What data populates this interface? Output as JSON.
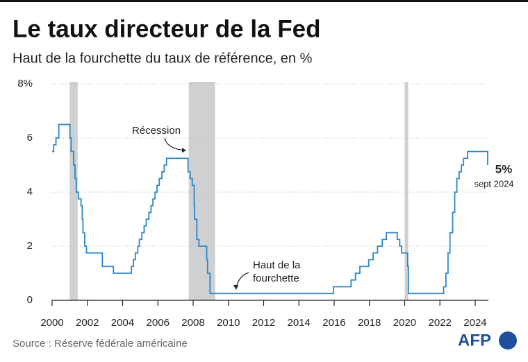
{
  "chart_data": {
    "type": "line",
    "step": "after",
    "title": "Le taux directeur de la Fed",
    "subtitle": "Haut de la fourchette du taux de référence, en %",
    "source": "Source : Réserve fédérale américaine",
    "logo": "AFP",
    "x": [
      2000.0,
      2000.09,
      2000.22,
      2000.38,
      2001.01,
      2001.08,
      2001.22,
      2001.3,
      2001.37,
      2001.49,
      2001.64,
      2001.71,
      2001.75,
      2001.85,
      2001.95,
      2002.85,
      2003.48,
      2004.5,
      2004.61,
      2004.72,
      2004.86,
      2004.95,
      2005.09,
      2005.22,
      2005.34,
      2005.49,
      2005.61,
      2005.72,
      2005.84,
      2005.95,
      2006.08,
      2006.23,
      2006.36,
      2006.49,
      2007.71,
      2007.83,
      2007.95,
      2008.06,
      2008.08,
      2008.21,
      2008.33,
      2008.77,
      2008.82,
      2008.96,
      2015.96,
      2016.96,
      2017.21,
      2017.46,
      2017.96,
      2018.21,
      2018.46,
      2018.73,
      2018.96,
      2019.58,
      2019.72,
      2019.83,
      2020.17,
      2020.21,
      2022.21,
      2022.34,
      2022.46,
      2022.57,
      2022.72,
      2022.84,
      2022.96,
      2023.09,
      2023.22,
      2023.34,
      2023.57,
      2024.71
    ],
    "series": [
      {
        "color": "#2a86c8",
        "values": [
          5.5,
          5.75,
          6.0,
          6.5,
          6.0,
          5.5,
          5.0,
          4.5,
          4.0,
          3.75,
          3.5,
          3.0,
          2.5,
          2.0,
          1.75,
          1.25,
          1.0,
          1.25,
          1.5,
          1.75,
          2.0,
          2.25,
          2.5,
          2.75,
          3.0,
          3.25,
          3.5,
          3.75,
          4.0,
          4.25,
          4.5,
          4.75,
          5.0,
          5.25,
          4.75,
          4.5,
          4.25,
          3.5,
          3.0,
          2.25,
          2.0,
          1.5,
          1.0,
          0.25,
          0.5,
          0.75,
          1.0,
          1.25,
          1.5,
          1.75,
          2.0,
          2.25,
          2.5,
          2.25,
          2.0,
          1.75,
          1.25,
          0.25,
          0.5,
          1.0,
          1.75,
          2.5,
          3.25,
          4.0,
          4.5,
          4.75,
          5.0,
          5.25,
          5.5,
          5.0
        ]
      }
    ],
    "recessions": [
      [
        2001.0,
        2001.45
      ],
      [
        2007.75,
        2009.25
      ],
      [
        2020.0,
        2020.2
      ]
    ],
    "recession_color": "#cfd0d2",
    "xlim": [
      2000,
      2024.75
    ],
    "xticks": [
      2000,
      2002,
      2004,
      2006,
      2008,
      2010,
      2012,
      2014,
      2016,
      2018,
      2020,
      2022,
      2024
    ],
    "ylim": [
      0,
      8
    ],
    "yticks": [
      0,
      2,
      4,
      6,
      {
        "value": 8,
        "label": "8%"
      }
    ],
    "grid": true,
    "annotations": [
      {
        "text": "Récession"
      },
      {
        "lines": [
          "Haut de la",
          "fourchette"
        ]
      },
      {
        "value": 5,
        "value_label": "5%",
        "text": "sept 2024"
      }
    ]
  }
}
